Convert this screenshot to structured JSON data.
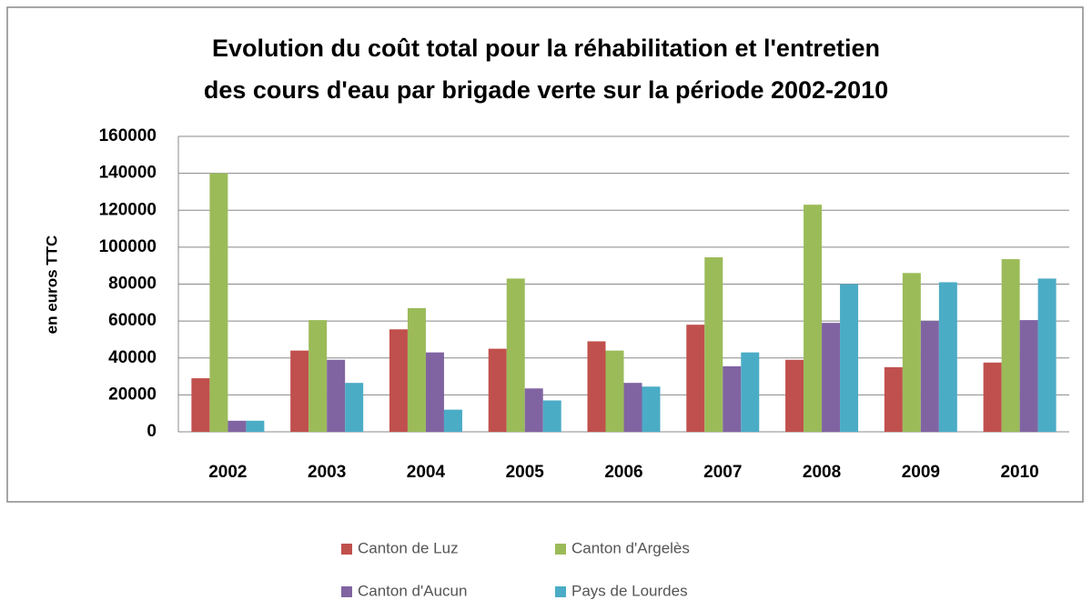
{
  "chart_data": {
    "type": "bar",
    "title": [
      "Evolution du coût total pour la réhabilitation et l'entretien",
      "des cours d'eau  par brigade  verte sur la période 2002-2010"
    ],
    "y_label": "en euros TTC",
    "categories": [
      "2002",
      "2003",
      "2004",
      "2005",
      "2006",
      "2007",
      "2008",
      "2009",
      "2010"
    ],
    "series": [
      {
        "name": "Canton de Luz",
        "color": "#c0504d",
        "values": [
          29000,
          44000,
          55500,
          45000,
          49000,
          58000,
          39000,
          35000,
          37500
        ]
      },
      {
        "name": "Canton d'Argelès",
        "color": "#9bbb59",
        "values": [
          140000,
          60500,
          67000,
          83000,
          44000,
          94500,
          123000,
          86000,
          93500
        ]
      },
      {
        "name": "Canton d'Aucun",
        "color": "#8064a2",
        "values": [
          6000,
          39000,
          43000,
          23500,
          26500,
          35500,
          59000,
          60000,
          60500
        ]
      },
      {
        "name": "Pays de Lourdes",
        "color": "#4bacc6",
        "values": [
          6000,
          26500,
          12000,
          17000,
          24500,
          43000,
          80000,
          81000,
          83000
        ]
      }
    ],
    "ylim": [
      0,
      160000
    ],
    "yticks": [
      0,
      20000,
      40000,
      60000,
      80000,
      100000,
      120000,
      140000,
      160000
    ],
    "grid": true,
    "legend": "bottom"
  }
}
